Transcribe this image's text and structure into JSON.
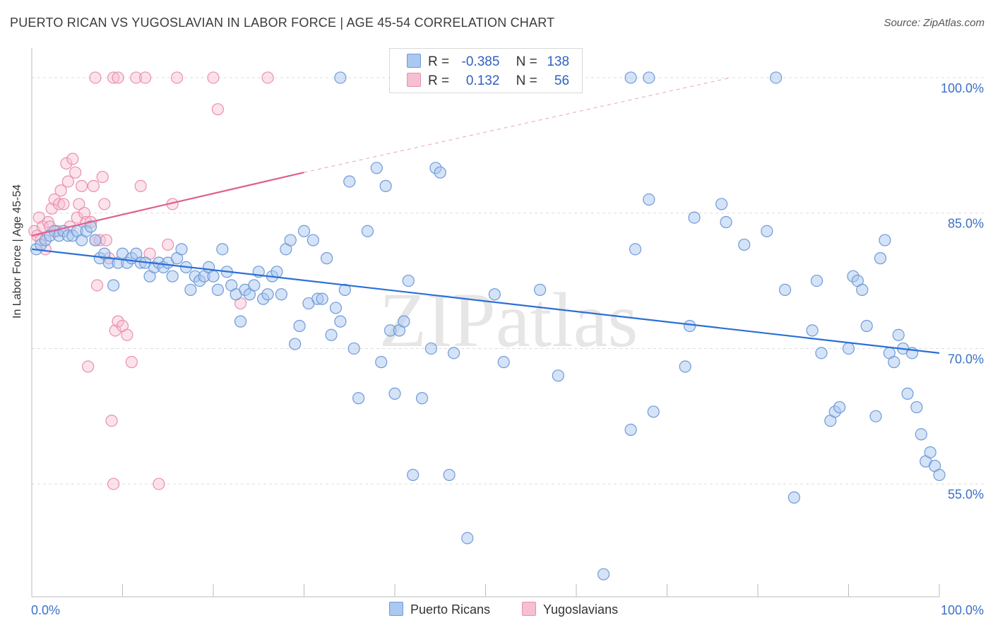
{
  "title": "PUERTO RICAN VS YUGOSLAVIAN IN LABOR FORCE | AGE 45-54 CORRELATION CHART",
  "source": "Source: ZipAtlas.com",
  "watermark": "ZIPatlas",
  "legend": {
    "r_label": "R =",
    "n_label": "N =",
    "series1": {
      "r": "-0.385",
      "n": "138"
    },
    "series2": {
      "r": "0.132",
      "n": "56"
    }
  },
  "bottom_legend": {
    "series1": "Puerto Ricans",
    "series2": "Yugoslavians"
  },
  "colors": {
    "blue_fill": "#aac8f0",
    "blue_stroke": "#6f9ad8",
    "blue_line": "#2a6fd6",
    "pink_fill": "#f6bfd2",
    "pink_stroke": "#ea8fb0",
    "pink_line": "#e0608e",
    "tick_label": "#3a70c8"
  },
  "chart_data": {
    "type": "scatter",
    "title": "PUERTO RICAN VS YUGOSLAVIAN IN LABOR FORCE | AGE 45-54 CORRELATION CHART",
    "xlabel": "",
    "ylabel": "In Labor Force | Age 45-54",
    "xlim": [
      0,
      100
    ],
    "ylim": [
      42.5,
      102.5
    ],
    "x_tick_labels": [
      "0.0%",
      "100.0%"
    ],
    "y_ticks": [
      55,
      70,
      85,
      100
    ],
    "y_tick_labels": [
      "55.0%",
      "70.0%",
      "85.0%",
      "100.0%"
    ],
    "grid": true,
    "legend_position": "top-center",
    "series": [
      {
        "name": "Puerto Ricans",
        "r": -0.385,
        "n": 138,
        "trend": {
          "x": [
            0,
            100
          ],
          "y": [
            81.0,
            69.5
          ]
        },
        "points": [
          [
            0.5,
            81.0
          ],
          [
            1.0,
            81.5
          ],
          [
            1.5,
            82.0
          ],
          [
            2.0,
            82.5
          ],
          [
            2.5,
            83.0
          ],
          [
            3.0,
            82.5
          ],
          [
            3.5,
            83.0
          ],
          [
            4.0,
            82.5
          ],
          [
            4.5,
            82.5
          ],
          [
            5.0,
            83.0
          ],
          [
            5.5,
            82.0
          ],
          [
            6.0,
            83.0
          ],
          [
            6.5,
            83.5
          ],
          [
            7.0,
            82.0
          ],
          [
            7.5,
            80.0
          ],
          [
            8.0,
            80.5
          ],
          [
            8.5,
            79.5
          ],
          [
            9.0,
            77.0
          ],
          [
            9.5,
            79.5
          ],
          [
            10.0,
            80.5
          ],
          [
            10.5,
            79.5
          ],
          [
            11.0,
            80.0
          ],
          [
            11.5,
            80.5
          ],
          [
            12.0,
            79.5
          ],
          [
            12.5,
            79.5
          ],
          [
            13.0,
            78.0
          ],
          [
            13.5,
            79.0
          ],
          [
            14.0,
            79.5
          ],
          [
            14.5,
            79.0
          ],
          [
            15.0,
            79.5
          ],
          [
            15.5,
            78.0
          ],
          [
            16.0,
            80.0
          ],
          [
            16.5,
            81.0
          ],
          [
            17.0,
            79.0
          ],
          [
            17.5,
            76.5
          ],
          [
            18.0,
            78.0
          ],
          [
            18.5,
            77.5
          ],
          [
            19.0,
            78.0
          ],
          [
            19.5,
            79.0
          ],
          [
            20.0,
            78.0
          ],
          [
            20.5,
            76.5
          ],
          [
            21.0,
            81.0
          ],
          [
            21.5,
            78.5
          ],
          [
            22.0,
            77.0
          ],
          [
            22.5,
            76.0
          ],
          [
            23.0,
            73.0
          ],
          [
            23.5,
            76.5
          ],
          [
            24.0,
            76.0
          ],
          [
            24.5,
            77.0
          ],
          [
            25.0,
            78.5
          ],
          [
            25.5,
            75.5
          ],
          [
            26.0,
            76.0
          ],
          [
            26.5,
            78.0
          ],
          [
            27.0,
            78.5
          ],
          [
            27.5,
            76.0
          ],
          [
            28.0,
            81.0
          ],
          [
            28.5,
            82.0
          ],
          [
            29.0,
            70.5
          ],
          [
            29.5,
            72.5
          ],
          [
            30.0,
            83.0
          ],
          [
            30.5,
            75.0
          ],
          [
            31.0,
            82.0
          ],
          [
            31.5,
            75.5
          ],
          [
            32.0,
            75.5
          ],
          [
            32.5,
            80.0
          ],
          [
            33.0,
            71.5
          ],
          [
            33.5,
            74.5
          ],
          [
            34.0,
            73.0
          ],
          [
            34.5,
            76.5
          ],
          [
            35.0,
            88.5
          ],
          [
            35.5,
            70.0
          ],
          [
            36.0,
            64.5
          ],
          [
            37.0,
            83.0
          ],
          [
            38.0,
            90.0
          ],
          [
            38.5,
            68.5
          ],
          [
            39.0,
            88.0
          ],
          [
            39.5,
            72.0
          ],
          [
            40.0,
            65.0
          ],
          [
            40.5,
            72.0
          ],
          [
            41.0,
            73.0
          ],
          [
            41.5,
            77.5
          ],
          [
            42.0,
            56.0
          ],
          [
            43.0,
            64.5
          ],
          [
            44.0,
            70.0
          ],
          [
            44.5,
            90.0
          ],
          [
            45.0,
            89.5
          ],
          [
            46.0,
            56.0
          ],
          [
            46.5,
            69.5
          ],
          [
            48.0,
            49.0
          ],
          [
            51.0,
            76.0
          ],
          [
            52.0,
            68.5
          ],
          [
            56.0,
            76.5
          ],
          [
            58.0,
            67.0
          ],
          [
            63.0,
            45.0
          ],
          [
            66.0,
            61.0
          ],
          [
            66.5,
            81.0
          ],
          [
            68.0,
            86.5
          ],
          [
            68.5,
            63.0
          ],
          [
            72.0,
            68.0
          ],
          [
            72.5,
            72.5
          ],
          [
            73.0,
            84.5
          ],
          [
            76.0,
            86.0
          ],
          [
            76.5,
            84.0
          ],
          [
            78.5,
            81.5
          ],
          [
            81.0,
            83.0
          ],
          [
            83.0,
            76.5
          ],
          [
            84.0,
            53.5
          ],
          [
            86.0,
            72.0
          ],
          [
            86.5,
            77.5
          ],
          [
            87.0,
            69.5
          ],
          [
            88.0,
            62.0
          ],
          [
            88.5,
            63.0
          ],
          [
            89.0,
            63.5
          ],
          [
            90.0,
            70.0
          ],
          [
            90.5,
            78.0
          ],
          [
            91.0,
            77.5
          ],
          [
            91.5,
            76.5
          ],
          [
            92.0,
            72.5
          ],
          [
            93.0,
            62.5
          ],
          [
            93.5,
            80.0
          ],
          [
            94.0,
            82.0
          ],
          [
            94.5,
            69.5
          ],
          [
            95.0,
            68.5
          ],
          [
            95.5,
            71.5
          ],
          [
            96.0,
            70.0
          ],
          [
            96.5,
            65.0
          ],
          [
            97.0,
            69.5
          ],
          [
            97.5,
            63.5
          ],
          [
            98.0,
            60.5
          ],
          [
            98.5,
            57.5
          ],
          [
            99.0,
            58.5
          ],
          [
            99.5,
            57.0
          ],
          [
            100.0,
            56.0
          ],
          [
            34.0,
            100.0
          ],
          [
            44.0,
            100.0
          ],
          [
            66.0,
            100.0
          ],
          [
            68.0,
            100.0
          ],
          [
            82.0,
            100.0
          ]
        ]
      },
      {
        "name": "Yugoslavians",
        "r": 0.132,
        "n": 56,
        "trend": {
          "x": [
            0,
            30
          ],
          "y": [
            82.5,
            89.5
          ]
        },
        "trend_dashed": {
          "x": [
            30,
            77
          ],
          "y": [
            89.5,
            100.0
          ]
        },
        "points": [
          [
            0.3,
            83.0
          ],
          [
            0.6,
            82.5
          ],
          [
            0.8,
            84.5
          ],
          [
            1.0,
            82.0
          ],
          [
            1.2,
            83.5
          ],
          [
            1.5,
            81.0
          ],
          [
            1.8,
            84.0
          ],
          [
            2.0,
            83.5
          ],
          [
            2.2,
            85.5
          ],
          [
            2.5,
            86.5
          ],
          [
            2.8,
            83.0
          ],
          [
            3.0,
            86.0
          ],
          [
            3.2,
            87.5
          ],
          [
            3.5,
            86.0
          ],
          [
            3.8,
            90.5
          ],
          [
            4.0,
            88.5
          ],
          [
            4.2,
            83.5
          ],
          [
            4.5,
            91.0
          ],
          [
            4.8,
            89.5
          ],
          [
            5.0,
            84.5
          ],
          [
            5.2,
            86.0
          ],
          [
            5.5,
            88.0
          ],
          [
            5.8,
            85.0
          ],
          [
            6.0,
            84.0
          ],
          [
            6.2,
            68.0
          ],
          [
            6.5,
            84.0
          ],
          [
            6.8,
            88.0
          ],
          [
            7.0,
            82.0
          ],
          [
            7.2,
            77.0
          ],
          [
            7.5,
            82.0
          ],
          [
            7.8,
            89.0
          ],
          [
            8.0,
            86.0
          ],
          [
            8.2,
            82.0
          ],
          [
            8.5,
            80.0
          ],
          [
            8.8,
            62.0
          ],
          [
            9.0,
            55.0
          ],
          [
            9.2,
            72.0
          ],
          [
            9.5,
            73.0
          ],
          [
            10.0,
            72.5
          ],
          [
            10.5,
            71.5
          ],
          [
            11.0,
            68.5
          ],
          [
            12.0,
            88.0
          ],
          [
            13.0,
            80.5
          ],
          [
            14.0,
            55.0
          ],
          [
            15.0,
            81.5
          ],
          [
            15.5,
            86.0
          ],
          [
            20.5,
            96.5
          ],
          [
            23.0,
            75.0
          ],
          [
            7.0,
            100.0
          ],
          [
            9.0,
            100.0
          ],
          [
            9.5,
            100.0
          ],
          [
            11.5,
            100.0
          ],
          [
            12.5,
            100.0
          ],
          [
            16.0,
            100.0
          ],
          [
            20.0,
            100.0
          ],
          [
            26.0,
            100.0
          ]
        ]
      }
    ]
  }
}
